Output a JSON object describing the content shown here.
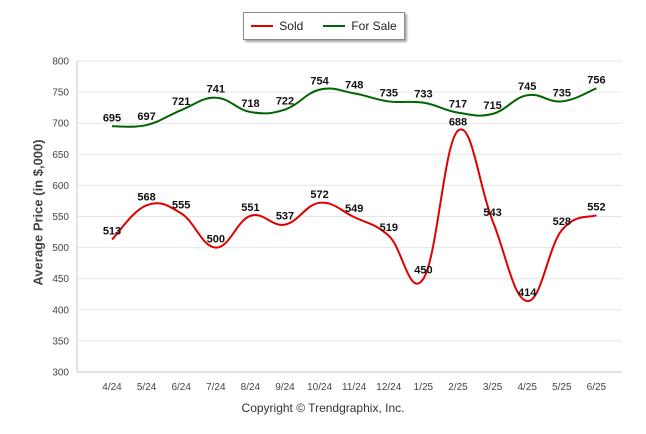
{
  "chart_data": {
    "type": "line",
    "title": "",
    "xlabel": "",
    "ylabel": "Average Price (in $,000)",
    "ylim": [
      300,
      800
    ],
    "yticks": [
      "300",
      "350",
      "400",
      "450",
      "500",
      "550",
      "600",
      "650",
      "700",
      "750",
      "800"
    ],
    "categories": [
      "4/24",
      "5/24",
      "6/24",
      "7/24",
      "8/24",
      "9/24",
      "10/24",
      "11/24",
      "12/24",
      "1/25",
      "2/25",
      "3/25",
      "4/25",
      "5/25",
      "6/25"
    ],
    "series": [
      {
        "name": "Sold",
        "color": "#e00000",
        "values": [
          513,
          568,
          555,
          500,
          551,
          537,
          572,
          549,
          519,
          450,
          688,
          543,
          414,
          528,
          552
        ]
      },
      {
        "name": "For Sale",
        "color": "#006400",
        "values": [
          695,
          697,
          721,
          741,
          718,
          722,
          754,
          748,
          735,
          733,
          717,
          715,
          745,
          735,
          756
        ]
      }
    ],
    "legend": "top-center",
    "grid": true
  },
  "legend": {
    "sold_label": "Sold",
    "forsale_label": "For Sale"
  },
  "footer": {
    "copyright": "Copyright © Trendgraphix, Inc."
  }
}
